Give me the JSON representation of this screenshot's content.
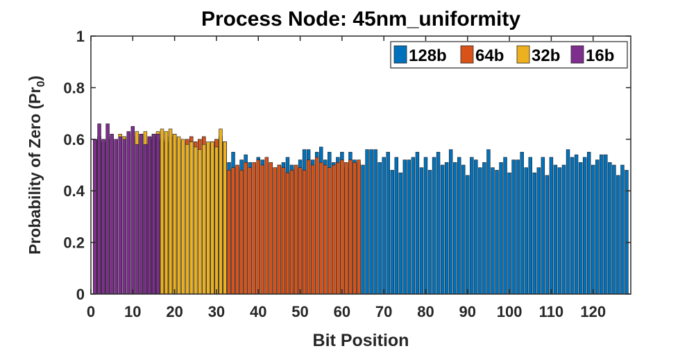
{
  "chart_data": {
    "type": "bar",
    "title": "Process Node: 45nm_uniformity",
    "xlabel": "Bit Position",
    "ylabel_main": "Probability of Zero (Pr",
    "ylabel_sub": "0",
    "ylabel_close": ")",
    "xlim": [
      0,
      129
    ],
    "ylim": [
      0,
      1
    ],
    "xticks": [
      0,
      10,
      20,
      30,
      40,
      50,
      60,
      70,
      80,
      90,
      100,
      110,
      120
    ],
    "yticks": [
      0,
      0.2,
      0.4,
      0.6,
      0.8,
      1
    ],
    "ytick_labels": [
      "0",
      "0.2",
      "0.4",
      "0.6",
      "0.8",
      "1"
    ],
    "legend_position": "top-right",
    "grid": false,
    "series": [
      {
        "name": "128b",
        "color": "#0072BD",
        "x_start": 1,
        "values": [
          0.6,
          0.61,
          0.59,
          0.6,
          0.61,
          0.6,
          0.58,
          0.61,
          0.6,
          0.59,
          0.61,
          0.62,
          0.58,
          0.6,
          0.61,
          0.62,
          0.6,
          0.59,
          0.61,
          0.62,
          0.6,
          0.59,
          0.6,
          0.61,
          0.59,
          0.6,
          0.61,
          0.58,
          0.59,
          0.6,
          0.61,
          0.59,
          0.51,
          0.55,
          0.49,
          0.52,
          0.54,
          0.51,
          0.5,
          0.53,
          0.52,
          0.5,
          0.51,
          0.49,
          0.5,
          0.51,
          0.53,
          0.5,
          0.49,
          0.52,
          0.56,
          0.56,
          0.52,
          0.55,
          0.57,
          0.52,
          0.55,
          0.51,
          0.53,
          0.55,
          0.49,
          0.55,
          0.52,
          0.51,
          0.5,
          0.56,
          0.56,
          0.56,
          0.51,
          0.53,
          0.55,
          0.48,
          0.53,
          0.47,
          0.52,
          0.52,
          0.53,
          0.55,
          0.49,
          0.53,
          0.48,
          0.53,
          0.55,
          0.5,
          0.51,
          0.56,
          0.51,
          0.53,
          0.5,
          0.46,
          0.53,
          0.52,
          0.49,
          0.51,
          0.56,
          0.49,
          0.48,
          0.51,
          0.53,
          0.47,
          0.52,
          0.52,
          0.55,
          0.49,
          0.53,
          0.47,
          0.49,
          0.53,
          0.46,
          0.53,
          0.5,
          0.49,
          0.5,
          0.56,
          0.53,
          0.54,
          0.51,
          0.53,
          0.55,
          0.5,
          0.52,
          0.54,
          0.54,
          0.51,
          0.5,
          0.46,
          0.5,
          0.48
        ]
      },
      {
        "name": "64b",
        "color": "#D95319",
        "x_start": 1,
        "values": [
          0.6,
          0.61,
          0.59,
          0.6,
          0.61,
          0.59,
          0.58,
          0.61,
          0.6,
          0.59,
          0.61,
          0.62,
          0.58,
          0.6,
          0.61,
          0.62,
          0.6,
          0.59,
          0.61,
          0.62,
          0.6,
          0.59,
          0.6,
          0.61,
          0.59,
          0.6,
          0.61,
          0.58,
          0.59,
          0.6,
          0.61,
          0.59,
          0.48,
          0.49,
          0.5,
          0.48,
          0.51,
          0.49,
          0.51,
          0.52,
          0.5,
          0.53,
          0.51,
          0.49,
          0.5,
          0.49,
          0.47,
          0.48,
          0.5,
          0.49,
          0.48,
          0.52,
          0.5,
          0.53,
          0.51,
          0.5,
          0.49,
          0.5,
          0.51,
          0.52,
          0.51,
          0.52,
          0.51,
          0.52
        ]
      },
      {
        "name": "32b",
        "color": "#EDB120",
        "x_start": 1,
        "values": [
          0.6,
          0.61,
          0.59,
          0.6,
          0.61,
          0.6,
          0.62,
          0.61,
          0.6,
          0.62,
          0.63,
          0.62,
          0.63,
          0.61,
          0.62,
          0.63,
          0.64,
          0.63,
          0.64,
          0.62,
          0.61,
          0.6,
          0.58,
          0.59,
          0.57,
          0.56,
          0.58,
          0.59,
          0.59,
          0.57,
          0.64,
          0.59
        ]
      },
      {
        "name": "16b",
        "color": "#7E2F8E",
        "x_start": 1,
        "values": [
          0.6,
          0.66,
          0.6,
          0.66,
          0.62,
          0.6,
          0.61,
          0.6,
          0.63,
          0.65,
          0.58,
          0.62,
          0.58,
          0.61,
          0.62,
          0.62
        ]
      }
    ]
  }
}
